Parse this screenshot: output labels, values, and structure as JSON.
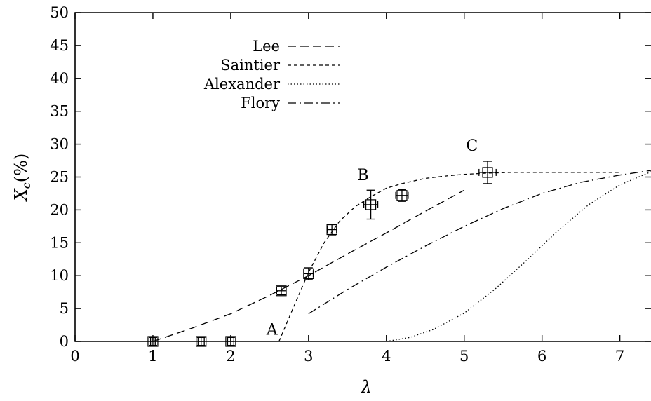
{
  "chart_data": {
    "type": "line",
    "xlabel": "λ",
    "ylabel_main": "X",
    "ylabel_sub": "c",
    "ylabel_suffix": "(%)",
    "xlim": [
      0,
      7.4
    ],
    "ylim": [
      0,
      50
    ],
    "xticks": [
      0,
      1,
      2,
      3,
      4,
      5,
      6,
      7
    ],
    "yticks": [
      0,
      5,
      10,
      15,
      20,
      25,
      30,
      35,
      40,
      45,
      50
    ],
    "grid": false,
    "legend_position": "top-left",
    "series": [
      {
        "name": "Lee",
        "style": "long-dash",
        "x": [
          1.0,
          1.5,
          2.0,
          2.5,
          3.0,
          3.5,
          4.0,
          4.5,
          5.0
        ],
        "y": [
          0.0,
          2.0,
          4.2,
          7.0,
          10.0,
          13.3,
          16.5,
          19.8,
          23.0
        ]
      },
      {
        "name": "Saintier",
        "style": "short-dash",
        "x": [
          2.62,
          2.8,
          3.0,
          3.2,
          3.4,
          3.6,
          3.8,
          4.0,
          4.2,
          4.5,
          4.8,
          5.0,
          5.3,
          5.6,
          6.0,
          6.5,
          7.0
        ],
        "y": [
          0.0,
          5.0,
          10.5,
          15.0,
          18.3,
          20.5,
          22.0,
          23.3,
          24.0,
          24.8,
          25.2,
          25.4,
          25.6,
          25.7,
          25.7,
          25.7,
          25.7
        ]
      },
      {
        "name": "Alexander",
        "style": "dotted",
        "x": [
          4.0,
          4.3,
          4.6,
          5.0,
          5.4,
          5.8,
          6.2,
          6.6,
          7.0,
          7.4
        ],
        "y": [
          0.0,
          0.6,
          1.8,
          4.3,
          8.0,
          12.3,
          16.8,
          20.8,
          23.8,
          25.8
        ]
      },
      {
        "name": "Flory",
        "style": "dash-dot",
        "x": [
          3.0,
          3.5,
          4.0,
          4.5,
          5.0,
          5.5,
          6.0,
          6.5,
          7.0,
          7.4
        ],
        "y": [
          4.2,
          7.9,
          11.3,
          14.5,
          17.5,
          20.2,
          22.5,
          24.2,
          25.3,
          26.0
        ]
      }
    ],
    "points": [
      {
        "x": 1.0,
        "y": 0.0,
        "xerr": 0.03,
        "yerr": 0.6
      },
      {
        "x": 1.62,
        "y": 0.0,
        "xerr": 0.04,
        "yerr": 0.6
      },
      {
        "x": 2.0,
        "y": 0.0,
        "xerr": 0.04,
        "yerr": 0.6
      },
      {
        "x": 2.65,
        "y": 7.7,
        "xerr": 0.06,
        "yerr": 0.6
      },
      {
        "x": 3.0,
        "y": 10.3,
        "xerr": 0.06,
        "yerr": 0.9
      },
      {
        "x": 3.3,
        "y": 17.0,
        "xerr": 0.06,
        "yerr": 0.8
      },
      {
        "x": 3.8,
        "y": 20.8,
        "xerr": 0.09,
        "yerr": 2.2
      },
      {
        "x": 4.2,
        "y": 22.2,
        "xerr": 0.08,
        "yerr": 0.9
      },
      {
        "x": 5.3,
        "y": 25.7,
        "xerr": 0.11,
        "yerr": 1.7
      }
    ],
    "annotations": [
      {
        "text": "A",
        "x": 2.53,
        "y": 1.0
      },
      {
        "text": "B",
        "x": 3.7,
        "y": 24.5
      },
      {
        "text": "C",
        "x": 5.1,
        "y": 29.0
      }
    ]
  }
}
